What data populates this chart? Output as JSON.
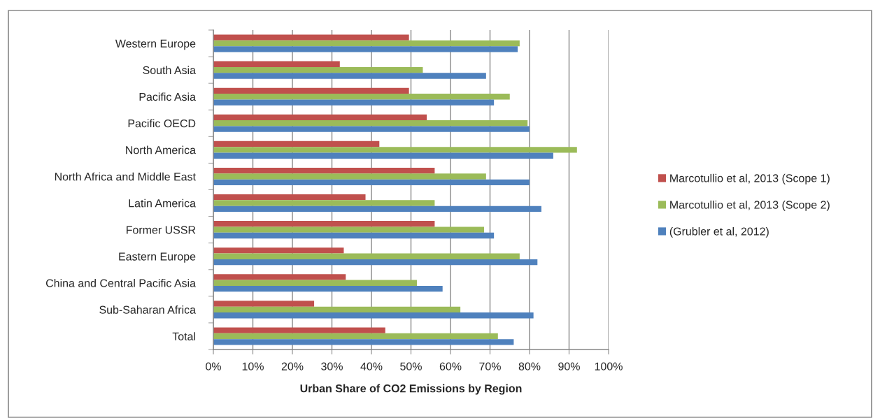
{
  "chart_data": {
    "type": "bar",
    "orientation": "horizontal",
    "xlabel": "Urban Share of CO2 Emissions by Region",
    "categories": [
      "Western Europe",
      "South Asia",
      "Pacific Asia",
      "Pacific OECD",
      "North America",
      "North Africa and Middle East",
      "Latin America",
      "Former USSR",
      "Eastern Europe",
      "China and Central Pacific Asia",
      "Sub-Saharan Africa",
      "Total"
    ],
    "series": [
      {
        "name": "Marcotullio et al, 2013 (Scope 1)",
        "color": "#c0504d",
        "values": [
          49.5,
          32,
          49.5,
          54,
          42,
          56,
          38.5,
          56,
          33,
          33.5,
          25.5,
          43.5
        ]
      },
      {
        "name": "Marcotullio et al, 2013 (Scope 2)",
        "color": "#9bbb59",
        "values": [
          77.5,
          53,
          75,
          79.5,
          92,
          69,
          56,
          68.5,
          77.5,
          51.5,
          62.5,
          72
        ]
      },
      {
        "name": "(Grubler et al, 2012)",
        "color": "#4f81bd",
        "values": [
          77,
          69,
          71,
          80,
          86,
          80,
          83,
          71,
          82,
          58,
          81,
          76
        ]
      }
    ],
    "xlim": [
      0,
      100
    ],
    "xticks": [
      {
        "value": 0,
        "label": "0%"
      },
      {
        "value": 10,
        "label": "10%"
      },
      {
        "value": 20,
        "label": "20%"
      },
      {
        "value": 30,
        "label": "30%"
      },
      {
        "value": 40,
        "label": "40%"
      },
      {
        "value": 50,
        "label": "50%"
      },
      {
        "value": 60,
        "label": "60%"
      },
      {
        "value": 70,
        "label": "70%"
      },
      {
        "value": 80,
        "label": "80%"
      },
      {
        "value": 90,
        "label": "90%"
      },
      {
        "value": 100,
        "label": "100%"
      }
    ],
    "grid": "x",
    "legend": "right"
  }
}
